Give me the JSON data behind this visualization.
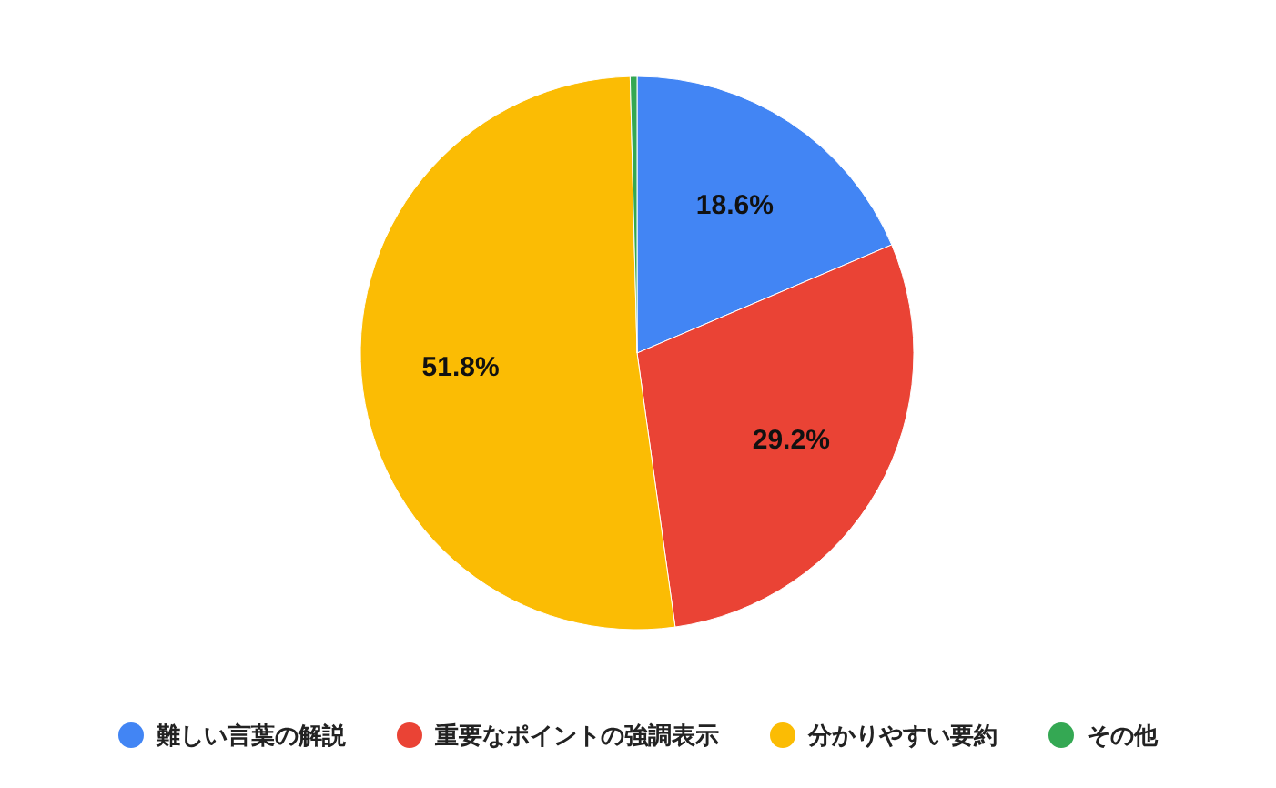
{
  "chart_data": {
    "type": "pie",
    "categories": [
      "難しい言葉の解説",
      "重要なポイントの強調表示",
      "分かりやすい要約",
      "その他"
    ],
    "values": [
      18.6,
      29.2,
      51.8,
      0.4
    ],
    "colors": [
      "#4285f4",
      "#ea4335",
      "#fbbc04",
      "#34a853"
    ],
    "value_labels": [
      "18.6%",
      "29.2%",
      "51.8%",
      null
    ],
    "legend": "bottom"
  }
}
